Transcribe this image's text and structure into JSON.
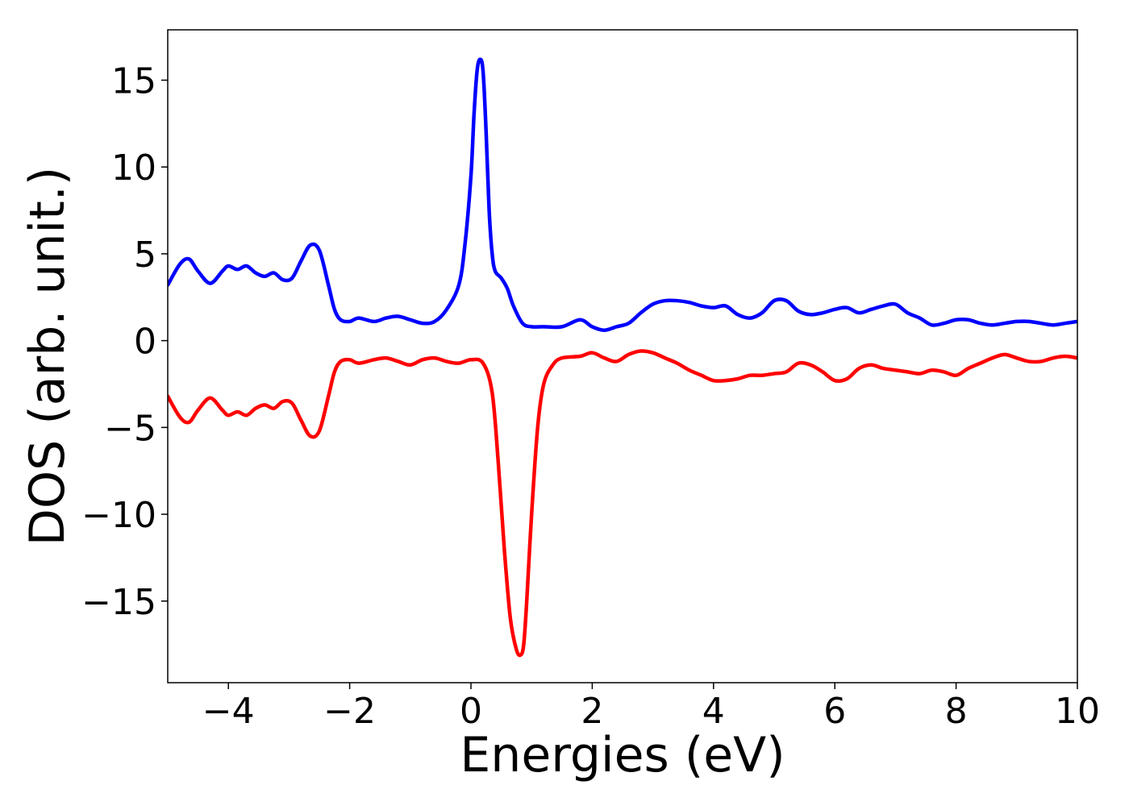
{
  "chart_data": {
    "type": "line",
    "title": "",
    "xlabel": "Energies (eV)",
    "ylabel": "DOS (arb. unit.)",
    "xlim": [
      -5,
      10
    ],
    "ylim": [
      -19.7,
      17.9
    ],
    "grid": false,
    "legend": "none",
    "x_ticks": [
      -4,
      -2,
      0,
      2,
      4,
      6,
      8,
      10
    ],
    "x_tick_labels": [
      "−4",
      "−2",
      "0",
      "2",
      "4",
      "6",
      "8",
      "10"
    ],
    "y_ticks": [
      15,
      10,
      5,
      0,
      -5,
      -10,
      -15
    ],
    "y_tick_labels": [
      "15",
      "10",
      "5",
      "0",
      "−5",
      "−10",
      "−15"
    ],
    "series": [
      {
        "color": "#0000ff",
        "x": [
          -5.0,
          -4.8,
          -4.65,
          -4.5,
          -4.3,
          -4.1,
          -4.0,
          -3.85,
          -3.7,
          -3.55,
          -3.4,
          -3.25,
          -3.1,
          -2.95,
          -2.8,
          -2.65,
          -2.5,
          -2.35,
          -2.25,
          -2.15,
          -2.0,
          -1.85,
          -1.6,
          -1.4,
          -1.2,
          -1.0,
          -0.8,
          -0.6,
          -0.4,
          -0.2,
          -0.1,
          0.0,
          0.05,
          0.1,
          0.15,
          0.2,
          0.25,
          0.3,
          0.35,
          0.4,
          0.5,
          0.6,
          0.7,
          0.85,
          1.0,
          1.2,
          1.5,
          1.8,
          2.0,
          2.2,
          2.4,
          2.6,
          2.8,
          3.0,
          3.2,
          3.4,
          3.6,
          3.8,
          4.0,
          4.2,
          4.4,
          4.6,
          4.8,
          5.0,
          5.2,
          5.4,
          5.6,
          5.8,
          6.0,
          6.2,
          6.4,
          6.6,
          6.8,
          7.0,
          7.2,
          7.4,
          7.6,
          7.8,
          8.0,
          8.2,
          8.4,
          8.6,
          8.8,
          9.0,
          9.2,
          9.4,
          9.6,
          9.8,
          10.0
        ],
        "values": [
          3.2,
          4.4,
          4.7,
          4.0,
          3.3,
          4.0,
          4.3,
          4.1,
          4.3,
          3.9,
          3.7,
          3.9,
          3.5,
          3.6,
          4.6,
          5.5,
          5.2,
          3.2,
          1.8,
          1.2,
          1.1,
          1.3,
          1.1,
          1.3,
          1.4,
          1.2,
          1.0,
          1.1,
          1.8,
          3.2,
          5.5,
          9.5,
          13.0,
          15.5,
          16.2,
          15.5,
          12.0,
          7.5,
          5.0,
          4.0,
          3.6,
          3.0,
          2.0,
          1.0,
          0.8,
          0.8,
          0.8,
          1.2,
          0.8,
          0.6,
          0.8,
          1.0,
          1.6,
          2.1,
          2.3,
          2.3,
          2.2,
          2.0,
          1.9,
          2.0,
          1.5,
          1.3,
          1.6,
          2.3,
          2.3,
          1.7,
          1.5,
          1.6,
          1.8,
          1.9,
          1.6,
          1.8,
          2.0,
          2.1,
          1.6,
          1.3,
          0.9,
          1.0,
          1.2,
          1.2,
          1.0,
          0.9,
          1.0,
          1.1,
          1.1,
          1.0,
          0.9,
          1.0,
          1.1
        ]
      },
      {
        "color": "#ff0000",
        "x": [
          -5.0,
          -4.8,
          -4.65,
          -4.5,
          -4.3,
          -4.1,
          -4.0,
          -3.85,
          -3.7,
          -3.55,
          -3.4,
          -3.25,
          -3.1,
          -2.95,
          -2.8,
          -2.65,
          -2.5,
          -2.35,
          -2.25,
          -2.15,
          -2.0,
          -1.85,
          -1.6,
          -1.4,
          -1.2,
          -1.0,
          -0.8,
          -0.6,
          -0.4,
          -0.2,
          0.0,
          0.2,
          0.35,
          0.45,
          0.55,
          0.65,
          0.75,
          0.82,
          0.87,
          0.92,
          1.0,
          1.1,
          1.2,
          1.35,
          1.5,
          1.8,
          2.0,
          2.2,
          2.4,
          2.6,
          2.8,
          3.0,
          3.2,
          3.4,
          3.6,
          3.8,
          4.0,
          4.2,
          4.4,
          4.6,
          4.8,
          5.0,
          5.2,
          5.4,
          5.6,
          5.8,
          6.0,
          6.2,
          6.4,
          6.6,
          6.8,
          7.0,
          7.2,
          7.4,
          7.6,
          7.8,
          8.0,
          8.2,
          8.4,
          8.6,
          8.8,
          9.0,
          9.2,
          9.4,
          9.6,
          9.8,
          10.0
        ],
        "values": [
          -3.2,
          -4.4,
          -4.7,
          -4.0,
          -3.3,
          -4.0,
          -4.3,
          -4.1,
          -4.3,
          -3.9,
          -3.7,
          -3.9,
          -3.5,
          -3.6,
          -4.6,
          -5.5,
          -5.2,
          -3.2,
          -1.8,
          -1.2,
          -1.1,
          -1.3,
          -1.1,
          -1.0,
          -1.2,
          -1.4,
          -1.1,
          -1.0,
          -1.2,
          -1.3,
          -1.1,
          -1.3,
          -3.0,
          -7.0,
          -12.0,
          -16.0,
          -17.8,
          -18.1,
          -17.5,
          -15.0,
          -10.0,
          -5.0,
          -2.5,
          -1.4,
          -1.0,
          -0.9,
          -0.7,
          -1.0,
          -1.2,
          -0.8,
          -0.6,
          -0.7,
          -1.0,
          -1.3,
          -1.7,
          -2.0,
          -2.3,
          -2.3,
          -2.2,
          -2.0,
          -2.0,
          -1.9,
          -1.8,
          -1.3,
          -1.4,
          -1.8,
          -2.3,
          -2.2,
          -1.6,
          -1.4,
          -1.6,
          -1.7,
          -1.8,
          -1.9,
          -1.7,
          -1.8,
          -2.0,
          -1.6,
          -1.3,
          -1.0,
          -0.8,
          -1.0,
          -1.2,
          -1.2,
          -1.0,
          -0.9,
          -1.0
        ]
      }
    ]
  }
}
